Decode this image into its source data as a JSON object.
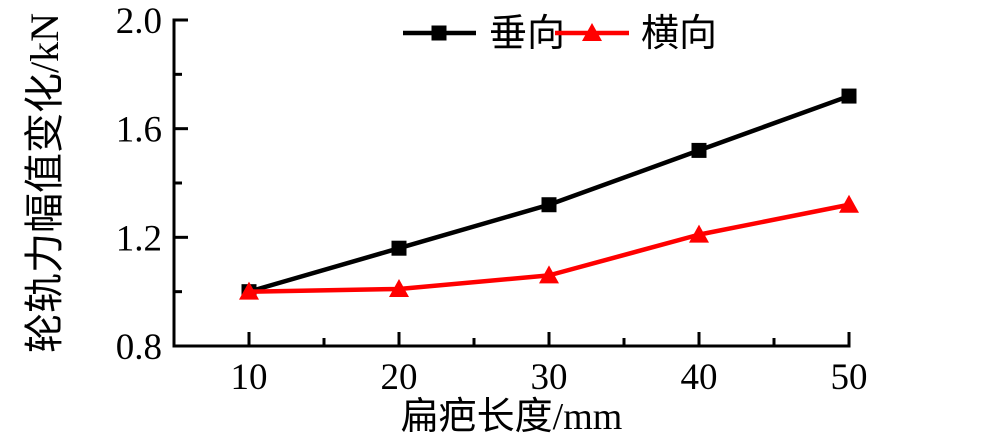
{
  "figure": {
    "background": "#ffffff",
    "axis_color": "#000000"
  },
  "chart_data": {
    "type": "line",
    "title": "",
    "xlabel": "扁疤长度/mm",
    "ylabel": "轮轨力幅值变化/kN",
    "x": [
      10,
      20,
      30,
      40,
      50
    ],
    "series": [
      {
        "id": "vertical",
        "name": "垂向",
        "color": "#000000",
        "marker": "square",
        "values": [
          1.0,
          1.16,
          1.32,
          1.52,
          1.72
        ]
      },
      {
        "id": "lateral",
        "name": "横向",
        "color": "#ff0000",
        "marker": "triangle",
        "values": [
          1.0,
          1.01,
          1.06,
          1.21,
          1.32
        ]
      }
    ],
    "xlim": [
      5,
      50
    ],
    "ylim": [
      0.8,
      2.0
    ],
    "x_ticks": {
      "major": [
        10,
        20,
        30,
        40,
        50
      ],
      "minor": [
        15,
        25,
        35,
        45
      ],
      "labels": [
        "10",
        "20",
        "30",
        "40",
        "50"
      ]
    },
    "y_ticks": {
      "major": [
        0.8,
        1.2,
        1.6,
        2.0
      ],
      "minor": [
        1.0,
        1.4,
        1.8
      ],
      "labels": [
        "0.8",
        "1.2",
        "1.6",
        "2.0"
      ]
    },
    "grid": false,
    "legend": {
      "position": "top-center",
      "border": false,
      "items": [
        "垂向",
        "横向"
      ]
    }
  }
}
